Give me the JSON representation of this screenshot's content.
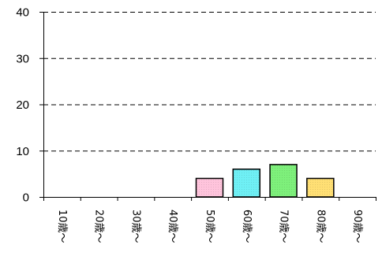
{
  "chart_data": {
    "type": "bar",
    "categories": [
      "10歳～",
      "20歳～",
      "30歳～",
      "40歳～",
      "50歳～",
      "60歳～",
      "70歳～",
      "80歳～",
      "90歳～"
    ],
    "values": [
      0,
      0,
      0,
      0,
      4,
      6,
      7,
      4,
      0
    ],
    "bar_colors": [
      "#ffffff",
      "#ffffff",
      "#ffffff",
      "#ffffff",
      "#ffc4dc",
      "#6ff0f5",
      "#7ef07b",
      "#ffdf74",
      "#ffffff"
    ],
    "ylim": [
      0,
      40
    ],
    "yticks": [
      0,
      10,
      20,
      30,
      40
    ],
    "grid": "dashed horizontal",
    "title": "",
    "xlabel": "",
    "ylabel": ""
  }
}
